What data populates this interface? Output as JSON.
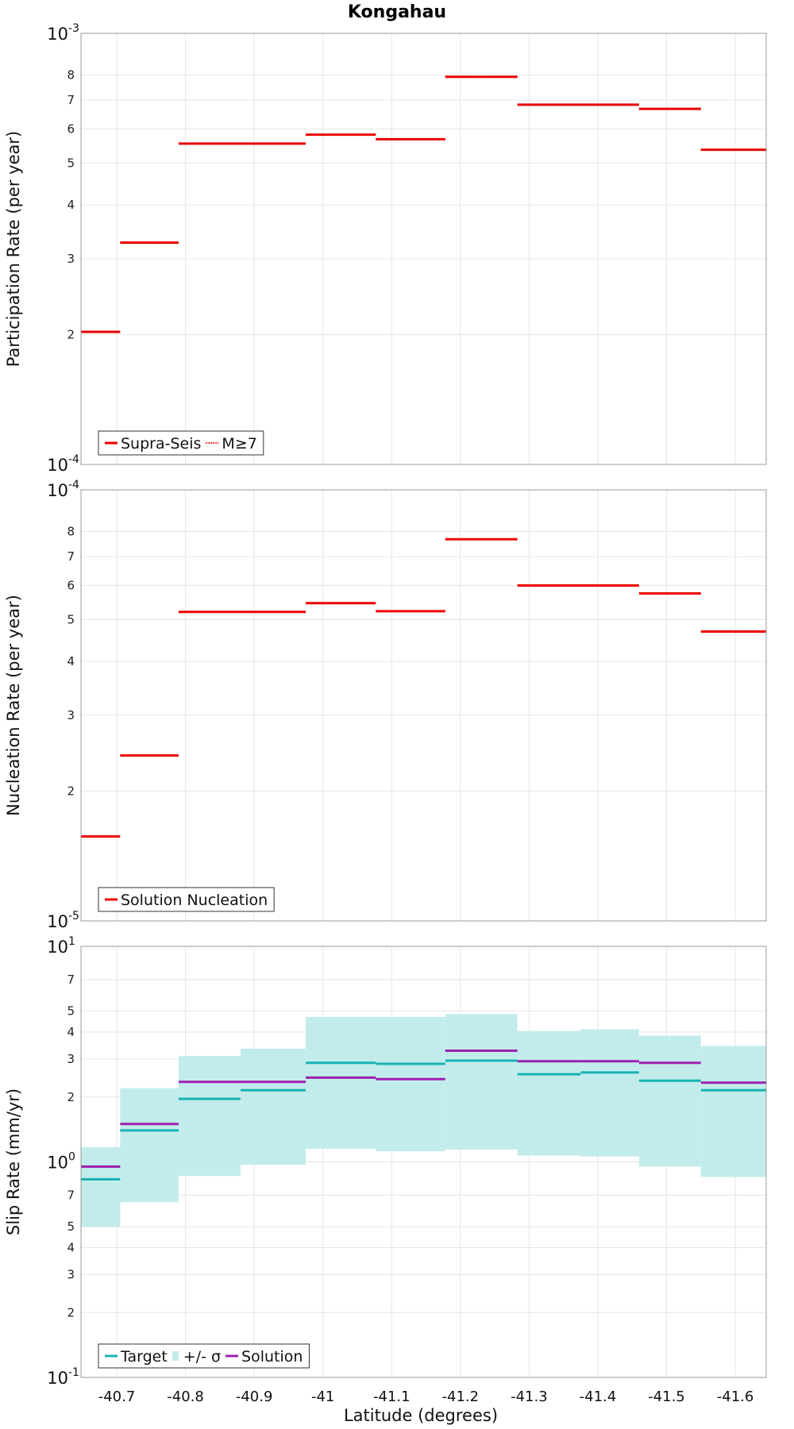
{
  "title": "Kongahau",
  "chart_data": [
    {
      "type": "step",
      "ylabel": "Participation Rate (per year)",
      "y_scale": "log",
      "ylim": [
        0.0001,
        0.001
      ],
      "major_ticks": [
        {
          "value": 0.001,
          "base": "10",
          "exp": "-3"
        },
        {
          "value": 0.0001,
          "base": "10",
          "exp": "-4"
        }
      ],
      "minor_ticks": [
        {
          "value": 0.0002,
          "label": "2"
        },
        {
          "value": 0.0003,
          "label": "3"
        },
        {
          "value": 0.0004,
          "label": "4"
        },
        {
          "value": 0.0005,
          "label": "5"
        },
        {
          "value": 0.0006,
          "label": "6"
        },
        {
          "value": 0.0007,
          "label": "7"
        },
        {
          "value": 0.0008,
          "label": "8"
        }
      ],
      "legend": {
        "position": "bottom-left",
        "entries": [
          {
            "label": "Supra-Seis",
            "color": "#ee0000",
            "style": "solid"
          },
          {
            "label": "M≥7",
            "color": "#ee0000",
            "style": "dotted"
          }
        ]
      },
      "series": [
        {
          "name": "Supra-Seis",
          "color": "#ee0000",
          "style": "solid",
          "segments": [
            [
              -40.648,
              -40.705,
              0.000203
            ],
            [
              -40.705,
              -40.79,
              0.000327
            ],
            [
              -40.79,
              -40.975,
              0.000555
            ],
            [
              -40.975,
              -41.077,
              0.000582
            ],
            [
              -41.077,
              -41.178,
              0.000568
            ],
            [
              -41.178,
              -41.283,
              0.000793
            ],
            [
              -41.283,
              -41.46,
              0.000683
            ],
            [
              -41.46,
              -41.55,
              0.000668
            ],
            [
              -41.55,
              -41.645,
              0.000537
            ]
          ]
        },
        {
          "name": "M≥7",
          "color": "#ee0000",
          "style": "dotted",
          "segments": [
            [
              -40.648,
              -40.705,
              0.000203
            ],
            [
              -40.705,
              -40.79,
              0.000327
            ],
            [
              -40.79,
              -40.975,
              0.000555
            ],
            [
              -40.975,
              -41.077,
              0.000582
            ],
            [
              -41.077,
              -41.178,
              0.000568
            ],
            [
              -41.178,
              -41.283,
              0.000793
            ],
            [
              -41.283,
              -41.46,
              0.000683
            ],
            [
              -41.46,
              -41.55,
              0.000668
            ],
            [
              -41.55,
              -41.645,
              0.000537
            ]
          ]
        }
      ]
    },
    {
      "type": "step",
      "ylabel": "Nucleation Rate (per year)",
      "y_scale": "log",
      "ylim": [
        1e-05,
        0.0001
      ],
      "major_ticks": [
        {
          "value": 0.0001,
          "base": "10",
          "exp": "-4"
        },
        {
          "value": 1e-05,
          "base": "10",
          "exp": "-5"
        }
      ],
      "minor_ticks": [
        {
          "value": 2e-05,
          "label": "2"
        },
        {
          "value": 3e-05,
          "label": "3"
        },
        {
          "value": 4e-05,
          "label": "4"
        },
        {
          "value": 5e-05,
          "label": "5"
        },
        {
          "value": 6e-05,
          "label": "6"
        },
        {
          "value": 7e-05,
          "label": "7"
        },
        {
          "value": 8e-05,
          "label": "8"
        }
      ],
      "legend": {
        "position": "bottom-left",
        "entries": [
          {
            "label": "Solution Nucleation",
            "color": "#ee0000",
            "style": "solid"
          }
        ]
      },
      "series": [
        {
          "name": "Solution Nucleation",
          "color": "#ee0000",
          "style": "solid",
          "segments": [
            [
              -40.648,
              -40.705,
              1.57e-05
            ],
            [
              -40.705,
              -40.79,
              2.42e-05
            ],
            [
              -40.79,
              -40.975,
              5.21e-05
            ],
            [
              -40.975,
              -41.077,
              5.46e-05
            ],
            [
              -41.077,
              -41.178,
              5.23e-05
            ],
            [
              -41.178,
              -41.283,
              7.68e-05
            ],
            [
              -41.283,
              -41.46,
              6e-05
            ],
            [
              -41.46,
              -41.55,
              5.75e-05
            ],
            [
              -41.55,
              -41.645,
              4.69e-05
            ]
          ]
        }
      ]
    },
    {
      "type": "step",
      "ylabel": "Slip Rate (mm/yr)",
      "xlabel": "Latitude (degrees)",
      "y_scale": "log",
      "ylim": [
        0.1,
        10
      ],
      "major_ticks": [
        {
          "value": 10,
          "base": "10",
          "exp": "1"
        },
        {
          "value": 1,
          "base": "10",
          "exp": "0"
        },
        {
          "value": 0.1,
          "base": "10",
          "exp": "-1"
        }
      ],
      "minor_ticks": [
        {
          "value": 7,
          "label": "7"
        },
        {
          "value": 5,
          "label": "5"
        },
        {
          "value": 4,
          "label": "4"
        },
        {
          "value": 3,
          "label": "3"
        },
        {
          "value": 2,
          "label": "2"
        },
        {
          "value": 0.7,
          "label": "7"
        },
        {
          "value": 0.5,
          "label": "5"
        },
        {
          "value": 0.4,
          "label": "4"
        },
        {
          "value": 0.3,
          "label": "3"
        },
        {
          "value": 0.2,
          "label": "2"
        }
      ],
      "legend": {
        "position": "bottom-left",
        "entries": [
          {
            "label": "Target",
            "color": "#1ab3b3",
            "style": "solid"
          },
          {
            "label": "+/- σ",
            "color": "#c2ecec",
            "style": "box"
          },
          {
            "label": "Solution",
            "color": "#a020b0",
            "style": "solid"
          }
        ]
      },
      "band": {
        "name": "+/- σ",
        "color": "#c2ecec",
        "segments": [
          [
            -40.648,
            -40.705,
            0.5,
            1.17
          ],
          [
            -40.705,
            -40.79,
            0.65,
            2.2
          ],
          [
            -40.79,
            -40.88,
            0.86,
            3.1
          ],
          [
            -40.88,
            -40.975,
            0.97,
            3.35
          ],
          [
            -40.975,
            -41.077,
            1.15,
            4.7
          ],
          [
            -41.077,
            -41.178,
            1.12,
            4.7
          ],
          [
            -41.178,
            -41.283,
            1.14,
            4.85
          ],
          [
            -41.283,
            -41.375,
            1.07,
            4.05
          ],
          [
            -41.375,
            -41.46,
            1.06,
            4.12
          ],
          [
            -41.46,
            -41.55,
            0.95,
            3.85
          ],
          [
            -41.55,
            -41.645,
            0.85,
            3.45
          ]
        ]
      },
      "series": [
        {
          "name": "Target",
          "color": "#1ab3b3",
          "style": "solid",
          "segments": [
            [
              -40.648,
              -40.705,
              0.83
            ],
            [
              -40.705,
              -40.79,
              1.4
            ],
            [
              -40.79,
              -40.88,
              1.96
            ],
            [
              -40.88,
              -40.975,
              2.15
            ],
            [
              -40.975,
              -41.077,
              2.88
            ],
            [
              -41.077,
              -41.178,
              2.85
            ],
            [
              -41.178,
              -41.283,
              2.95
            ],
            [
              -41.283,
              -41.375,
              2.55
            ],
            [
              -41.375,
              -41.46,
              2.6
            ],
            [
              -41.46,
              -41.55,
              2.38
            ],
            [
              -41.55,
              -41.645,
              2.15
            ]
          ]
        },
        {
          "name": "Solution",
          "color": "#a020b0",
          "style": "solid",
          "segments": [
            [
              -40.648,
              -40.705,
              0.95
            ],
            [
              -40.705,
              -40.79,
              1.5
            ],
            [
              -40.79,
              -40.975,
              2.35
            ],
            [
              -40.975,
              -41.077,
              2.46
            ],
            [
              -41.077,
              -41.178,
              2.42
            ],
            [
              -41.178,
              -41.283,
              3.28
            ],
            [
              -41.283,
              -41.46,
              2.93
            ],
            [
              -41.46,
              -41.55,
              2.88
            ],
            [
              -41.55,
              -41.645,
              2.33
            ]
          ]
        }
      ]
    }
  ],
  "x_axis": {
    "xlim": [
      -40.648,
      -41.645
    ],
    "ticks": [
      {
        "value": -40.7,
        "label": "-40.7"
      },
      {
        "value": -40.8,
        "label": "-40.8"
      },
      {
        "value": -40.9,
        "label": "-40.9"
      },
      {
        "value": -41.0,
        "label": "-41"
      },
      {
        "value": -41.1,
        "label": "-41.1"
      },
      {
        "value": -41.2,
        "label": "-41.2"
      },
      {
        "value": -41.3,
        "label": "-41.3"
      },
      {
        "value": -41.4,
        "label": "-41.4"
      },
      {
        "value": -41.5,
        "label": "-41.5"
      },
      {
        "value": -41.6,
        "label": "-41.6"
      }
    ],
    "label": "Latitude (degrees)"
  }
}
